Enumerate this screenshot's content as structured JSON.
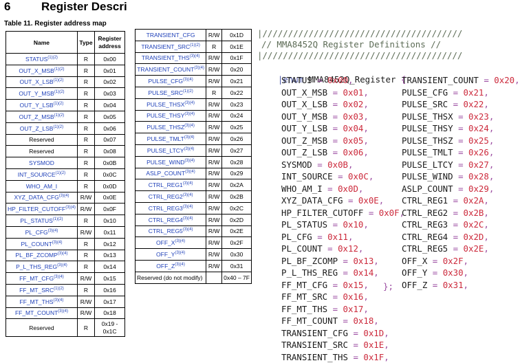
{
  "section": {
    "number": "6",
    "title": "Register Descri"
  },
  "table_caption": "Table 11. Register address map",
  "table1": {
    "headers": [
      "Name",
      "Type",
      "Register address"
    ],
    "rows": [
      {
        "name": "STATUS",
        "sup": "(1)(2)",
        "type": "R",
        "addr": "0x00"
      },
      {
        "name": "OUT_X_MSB",
        "sup": "(1)(2)",
        "type": "R",
        "addr": "0x01"
      },
      {
        "name": "OUT_X_LSB",
        "sup": "(1)(2)",
        "type": "R",
        "addr": "0x02"
      },
      {
        "name": "OUT_Y_MSB",
        "sup": "(1)(2)",
        "type": "R",
        "addr": "0x03"
      },
      {
        "name": "OUT_Y_LSB",
        "sup": "(1)(2)",
        "type": "R",
        "addr": "0x04"
      },
      {
        "name": "OUT_Z_MSB",
        "sup": "(1)(2)",
        "type": "R",
        "addr": "0x05"
      },
      {
        "name": "OUT_Z_LSB",
        "sup": "(1)(2)",
        "type": "R",
        "addr": "0x06"
      },
      {
        "name": "Reserved",
        "sup": "",
        "type": "R",
        "addr": "0x07",
        "plain": true
      },
      {
        "name": "Reserved",
        "sup": "",
        "type": "R",
        "addr": "0x08",
        "plain": true
      },
      {
        "name": "SYSMOD",
        "sup": "",
        "type": "R",
        "addr": "0x0B"
      },
      {
        "name": "INT_SOURCE",
        "sup": "(1)(2)",
        "type": "R",
        "addr": "0x0C"
      },
      {
        "name": "WHO_AM_I",
        "sup": "",
        "type": "R",
        "addr": "0x0D"
      },
      {
        "name": "XYZ_DATA_CFG",
        "sup": "(3)(4)",
        "type": "R/W",
        "addr": "0x0E"
      },
      {
        "name": "HP_FILTER_CUTOFF",
        "sup": "(3)(4)",
        "type": "R/W",
        "addr": "0x0F"
      },
      {
        "name": "PL_STATUS",
        "sup": "(1)(2)",
        "type": "R",
        "addr": "0x10"
      },
      {
        "name": "PL_CFG",
        "sup": "(3)(4)",
        "type": "R/W",
        "addr": "0x11"
      },
      {
        "name": "PL_COUNT",
        "sup": "(3)(4)",
        "type": "R",
        "addr": "0x12"
      },
      {
        "name": "PL_BF_ZCOMP",
        "sup": "(3)(4)",
        "type": "R",
        "addr": "0x13"
      },
      {
        "name": "P_L_THS_REG",
        "sup": "(3)(4)",
        "type": "R",
        "addr": "0x14"
      },
      {
        "name": "FF_MT_CFG",
        "sup": "(3)(4)",
        "type": "R/W",
        "addr": "0x15"
      },
      {
        "name": "FF_MT_SRC",
        "sup": "(1)(2)",
        "type": "R",
        "addr": "0x16"
      },
      {
        "name": "FF_MT_THS",
        "sup": "(3)(4)",
        "type": "R/W",
        "addr": "0x17"
      },
      {
        "name": "FF_MT_COUNT",
        "sup": "(3)(4)",
        "type": "R/W",
        "addr": "0x18"
      },
      {
        "name": "Reserved",
        "sup": "",
        "type": "R",
        "addr": "0x19 - 0x1C",
        "plain": true
      }
    ]
  },
  "table2": {
    "rows": [
      {
        "name": "TRANSIENT_CFG",
        "sup": "",
        "type": "R/W",
        "addr": "0x1D"
      },
      {
        "name": "TRANSIENT_SRC",
        "sup": "(1)(2)",
        "type": "R",
        "addr": "0x1E"
      },
      {
        "name": "TRANSIENT_THS",
        "sup": "(3)(4)",
        "type": "R/W",
        "addr": "0x1F"
      },
      {
        "name": "TRANSIENT_COUNT",
        "sup": "(3)(4)",
        "type": "R/W",
        "addr": "0x20"
      },
      {
        "name": "PULSE_CFG",
        "sup": "(3)(4)",
        "type": "R/W",
        "addr": "0x21"
      },
      {
        "name": "PULSE_SRC",
        "sup": "(1)(2)",
        "type": "R",
        "addr": "0x22"
      },
      {
        "name": "PULSE_THSX",
        "sup": "(3)(4)",
        "type": "R/W",
        "addr": "0x23"
      },
      {
        "name": "PULSE_THSY",
        "sup": "(3)(4)",
        "type": "R/W",
        "addr": "0x24"
      },
      {
        "name": "PULSE_THSZ",
        "sup": "(3)(4)",
        "type": "R/W",
        "addr": "0x25"
      },
      {
        "name": "PULSE_TMLT",
        "sup": "(3)(4)",
        "type": "R/W",
        "addr": "0x26"
      },
      {
        "name": "PULSE_LTCY",
        "sup": "(3)(4)",
        "type": "R/W",
        "addr": "0x27"
      },
      {
        "name": "PULSE_WIND",
        "sup": "(3)(4)",
        "type": "R/W",
        "addr": "0x28"
      },
      {
        "name": "ASLP_COUNT",
        "sup": "(3)(4)",
        "type": "R/W",
        "addr": "0x29"
      },
      {
        "name": "CTRL_REG1",
        "sup": "(3)(4)",
        "type": "R/W",
        "addr": "0x2A"
      },
      {
        "name": "CTRL_REG2",
        "sup": "(3)(4)",
        "type": "R/W",
        "addr": "0x2B"
      },
      {
        "name": "CTRL_REG3",
        "sup": "(3)(4)",
        "type": "R/W",
        "addr": "0x2C"
      },
      {
        "name": "CTRL_REG4",
        "sup": "(3)(4)",
        "type": "R/W",
        "addr": "0x2D"
      },
      {
        "name": "CTRL_REG5",
        "sup": "(3)(4)",
        "type": "R/W",
        "addr": "0x2E"
      },
      {
        "name": "OFF_X",
        "sup": "(3)(4)",
        "type": "R/W",
        "addr": "0x2F"
      },
      {
        "name": "OFF_Y",
        "sup": "(3)(4)",
        "type": "R/W",
        "addr": "0x30"
      },
      {
        "name": "OFF_Z",
        "sup": "(3)(4)",
        "type": "R/W",
        "addr": "0x31"
      },
      {
        "name": "Reserved (do not modify)",
        "sup": "",
        "type": "",
        "addr": "0x40 – 7F",
        "plain": true
      }
    ]
  },
  "code": {
    "rule_line": "|///////////////////////////////////////",
    "comment_line": "// MMA8452Q Register Definitions //",
    "rule_line2": "|///////////////////////////////////////",
    "enum_keyword": "|enum",
    "enum_name": "MMA8452Q_Register",
    "open_brace": "{",
    "close_brace": "};",
    "left_entries": [
      {
        "name": "STATUS",
        "value": "0x00"
      },
      {
        "name": "OUT_X_MSB",
        "value": "0x01"
      },
      {
        "name": "OUT_X_LSB",
        "value": "0x02"
      },
      {
        "name": "OUT_Y_MSB",
        "value": "0x03"
      },
      {
        "name": "OUT_Y_LSB",
        "value": "0x04"
      },
      {
        "name": "OUT_Z_MSB",
        "value": "0x05"
      },
      {
        "name": "OUT_Z_LSB",
        "value": "0x06"
      },
      {
        "name": "SYSMOD",
        "value": "0x0B"
      },
      {
        "name": "INT_SOURCE",
        "value": "0x0C"
      },
      {
        "name": "WHO_AM_I",
        "value": "0x0D"
      },
      {
        "name": "XYZ_DATA_CFG",
        "value": "0x0E"
      },
      {
        "name": "HP_FILTER_CUTOFF",
        "value": "0x0F"
      },
      {
        "name": "PL_STATUS",
        "value": "0x10"
      },
      {
        "name": "PL_CFG",
        "value": "0x11"
      },
      {
        "name": "PL_COUNT",
        "value": "0x12"
      },
      {
        "name": "PL_BF_ZCOMP",
        "value": "0x13"
      },
      {
        "name": "P_L_THS_REG",
        "value": "0x14"
      },
      {
        "name": "FF_MT_CFG",
        "value": "0x15"
      },
      {
        "name": "FF_MT_SRC",
        "value": "0x16"
      },
      {
        "name": "FF_MT_THS",
        "value": "0x17"
      },
      {
        "name": "FF_MT_COUNT",
        "value": "0x18"
      },
      {
        "name": "TRANSIENT_CFG",
        "value": "0x1D"
      },
      {
        "name": "TRANSIENT_SRC",
        "value": "0x1E"
      },
      {
        "name": "TRANSIENT_THS",
        "value": "0x1F"
      }
    ],
    "right_entries": [
      {
        "name": "TRANSIENT_COUNT",
        "value": "0x20"
      },
      {
        "name": "PULSE_CFG",
        "value": "0x21"
      },
      {
        "name": "PULSE_SRC",
        "value": "0x22"
      },
      {
        "name": "PULSE_THSX",
        "value": "0x23"
      },
      {
        "name": "PULSE_THSY",
        "value": "0x24"
      },
      {
        "name": "PULSE_THSZ",
        "value": "0x25"
      },
      {
        "name": "PULSE_TMLT",
        "value": "0x26"
      },
      {
        "name": "PULSE_LTCY",
        "value": "0x27"
      },
      {
        "name": "PULSE_WIND",
        "value": "0x28"
      },
      {
        "name": "ASLP_COUNT",
        "value": "0x29"
      },
      {
        "name": "CTRL_REG1",
        "value": "0x2A"
      },
      {
        "name": "CTRL_REG2",
        "value": "0x2B"
      },
      {
        "name": "CTRL_REG3",
        "value": "0x2C"
      },
      {
        "name": "CTRL_REG4",
        "value": "0x2D"
      },
      {
        "name": "CTRL_REG5",
        "value": "0x2E"
      },
      {
        "name": "OFF_X",
        "value": "0x2F"
      },
      {
        "name": "OFF_Y",
        "value": "0x30"
      },
      {
        "name": "OFF_Z",
        "value": "0x31"
      }
    ]
  }
}
